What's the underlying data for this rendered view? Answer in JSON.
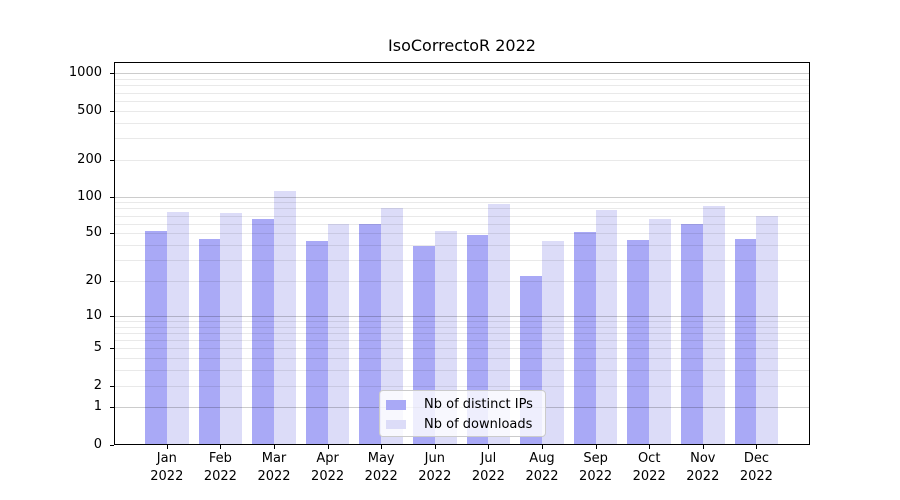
{
  "title": "IsoCorrectoR 2022",
  "chart_data": {
    "type": "bar",
    "title": "IsoCorrectoR 2022",
    "categories": [
      "Jan",
      "Feb",
      "Mar",
      "Apr",
      "May",
      "Jun",
      "Jul",
      "Aug",
      "Sep",
      "Oct",
      "Nov",
      "Dec"
    ],
    "year": "2022",
    "series": [
      {
        "name": "Nb of distinct IPs",
        "color": "#a9a9f6",
        "values": [
          52,
          45,
          65,
          43,
          60,
          39,
          48,
          22,
          51,
          44,
          60,
          45
        ]
      },
      {
        "name": "Nb of downloads",
        "color": "#dcdcf8",
        "values": [
          75,
          74,
          111,
          60,
          80,
          52,
          87,
          43,
          78,
          66,
          84,
          70
        ]
      }
    ],
    "y_axis": {
      "scale": "log1p",
      "tick_values": [
        0,
        1,
        2,
        5,
        10,
        20,
        50,
        100,
        200,
        500,
        1000
      ],
      "major_gridlines": [
        1,
        10,
        100,
        1000
      ],
      "ylim": [
        0,
        1240
      ]
    },
    "x_axis": {
      "label_format": "month over year, two lines"
    },
    "legend": {
      "position": "lower center"
    },
    "grid": true
  }
}
